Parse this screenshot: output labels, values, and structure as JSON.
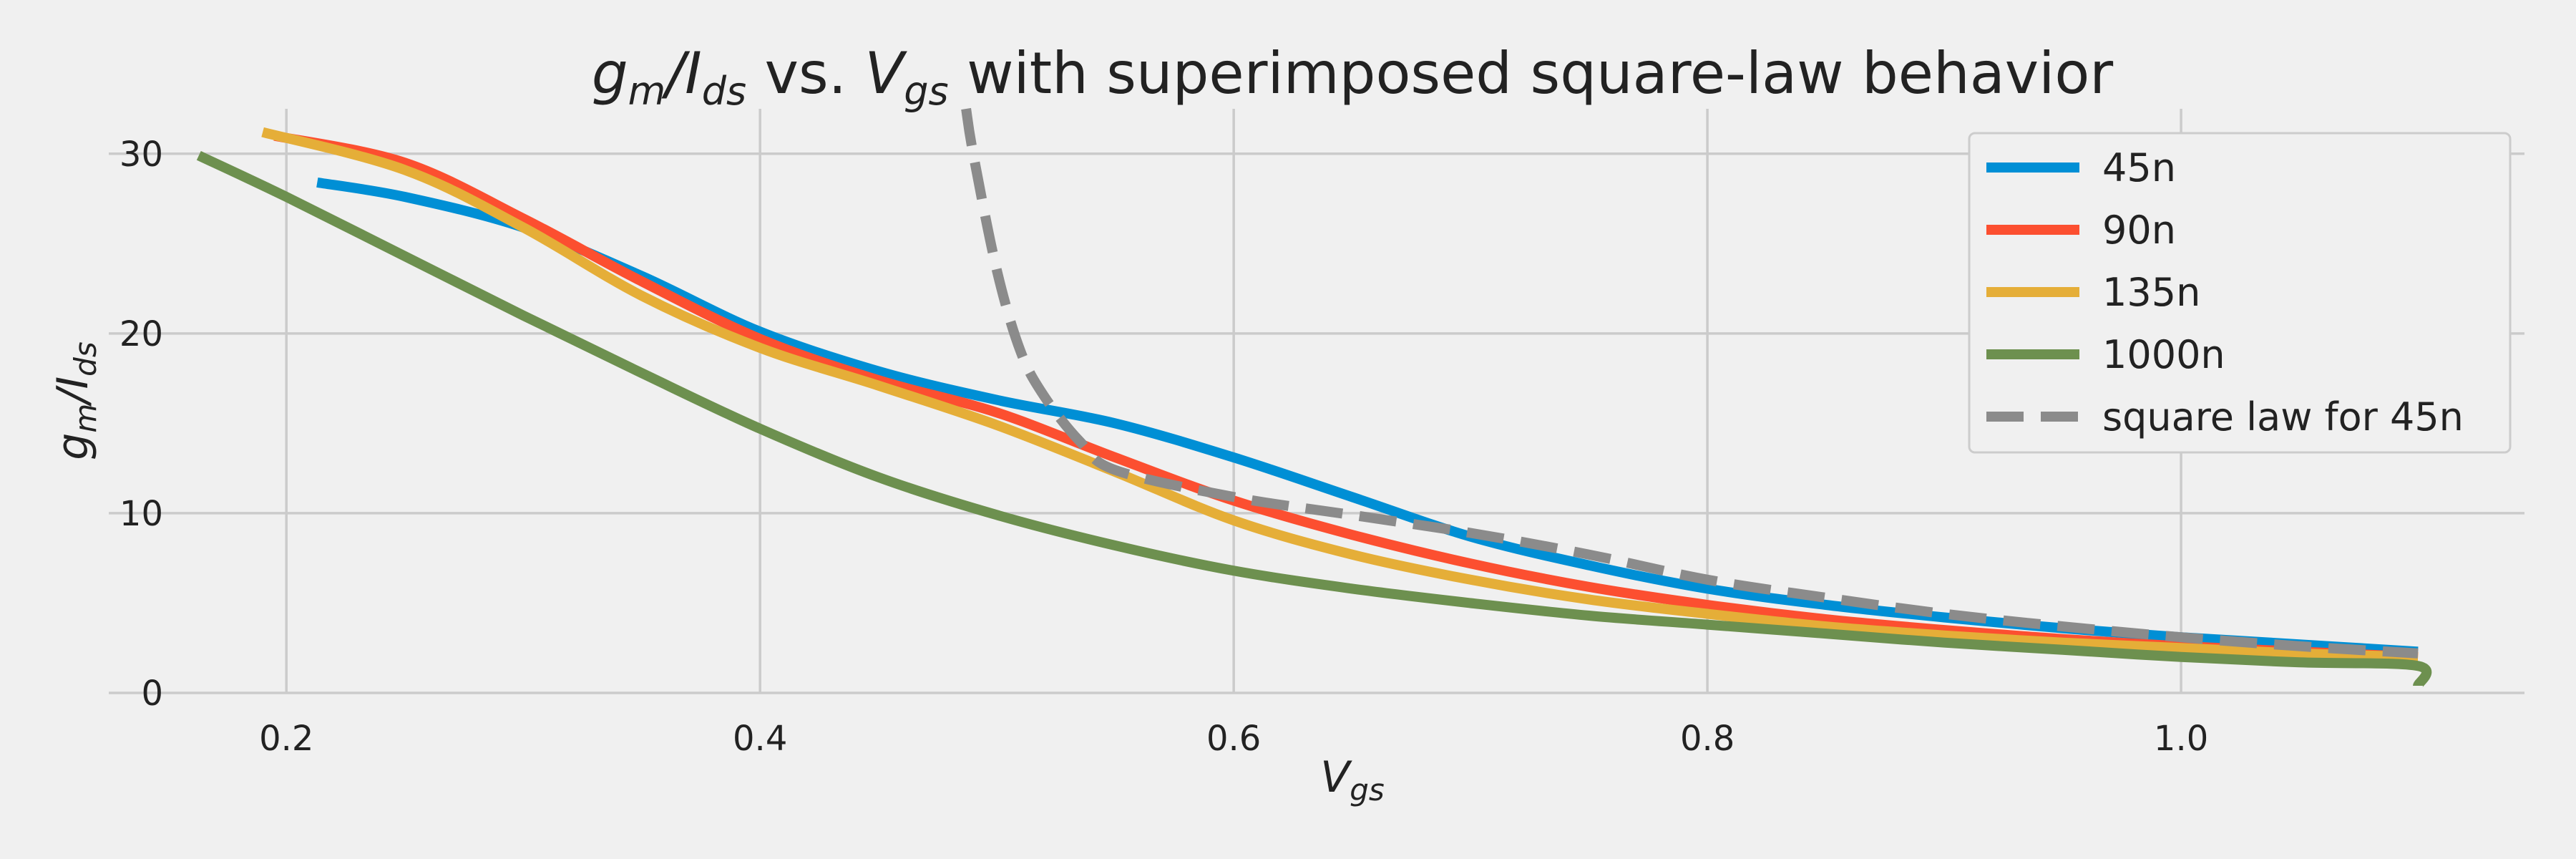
{
  "chart_data": {
    "type": "line",
    "title": "g_m/I_ds vs. V_gs with superimposed square-law behavior",
    "title_parts": {
      "gm": "g",
      "gm_sub": "m",
      "slash": "/",
      "ids": "I",
      "ids_sub": "ds",
      "vs": " vs. ",
      "vgs": "V",
      "vgs_sub": "gs",
      "rest": " with superimposed square-law behavior"
    },
    "xlabel": "V_gs",
    "xlabel_parts": {
      "main": "V",
      "sub": "gs"
    },
    "ylabel": "g_m/I_ds",
    "ylabel_parts": {
      "gm": "g",
      "gm_sub": "m",
      "slash": "/",
      "ids": "I",
      "ids_sub": "ds"
    },
    "xlim": [
      0.125,
      1.145
    ],
    "ylim": [
      0,
      32.5
    ],
    "xticks": [
      0.2,
      0.4,
      0.6,
      0.8,
      1.0
    ],
    "xtick_labels": [
      "0.2",
      "0.4",
      "0.6",
      "0.8",
      "1.0"
    ],
    "yticks": [
      0,
      10,
      20,
      30
    ],
    "ytick_labels": [
      "0",
      "10",
      "20",
      "30"
    ],
    "grid": true,
    "legend_position": "top-right",
    "series": [
      {
        "name": "45n",
        "color": "#008fd5",
        "dash": "solid",
        "x": [
          0.213,
          0.25,
          0.3,
          0.35,
          0.4,
          0.45,
          0.5,
          0.55,
          0.6,
          0.65,
          0.7,
          0.75,
          0.8,
          0.85,
          0.9,
          0.95,
          1.0,
          1.05,
          1.1
        ],
        "y": [
          28.4,
          27.6,
          25.9,
          23.2,
          20.1,
          17.9,
          16.3,
          15.0,
          13.1,
          10.9,
          8.7,
          7.1,
          5.8,
          4.9,
          4.2,
          3.6,
          3.1,
          2.7,
          2.3
        ]
      },
      {
        "name": "90n",
        "color": "#fc4f30",
        "dash": "solid",
        "x": [
          0.195,
          0.25,
          0.3,
          0.35,
          0.4,
          0.45,
          0.5,
          0.55,
          0.6,
          0.65,
          0.7,
          0.75,
          0.8,
          0.85,
          0.9,
          0.95,
          1.0,
          1.05,
          1.1
        ],
        "y": [
          31.0,
          29.5,
          26.4,
          22.9,
          19.7,
          17.4,
          15.6,
          13.1,
          10.7,
          8.8,
          7.2,
          5.9,
          4.9,
          4.1,
          3.5,
          3.0,
          2.6,
          2.3,
          2.0
        ]
      },
      {
        "name": "135n",
        "color": "#e5ae38",
        "dash": "solid",
        "x": [
          0.19,
          0.25,
          0.3,
          0.35,
          0.4,
          0.45,
          0.5,
          0.55,
          0.6,
          0.65,
          0.7,
          0.75,
          0.8,
          0.85,
          0.9,
          0.95,
          1.0,
          1.05,
          1.1
        ],
        "y": [
          31.2,
          29.1,
          25.9,
          22.1,
          19.2,
          17.1,
          14.9,
          12.3,
          9.6,
          7.7,
          6.3,
          5.2,
          4.4,
          3.7,
          3.2,
          2.8,
          2.5,
          2.2,
          2.0
        ]
      },
      {
        "name": "1000n",
        "color": "#6d904f",
        "dash": "solid",
        "x": [
          0.163,
          0.2,
          0.25,
          0.3,
          0.35,
          0.4,
          0.45,
          0.5,
          0.55,
          0.6,
          0.65,
          0.7,
          0.75,
          0.8,
          0.85,
          0.9,
          0.95,
          1.0,
          1.05,
          1.1,
          1.1
        ],
        "y": [
          29.9,
          27.6,
          24.3,
          21.0,
          17.8,
          14.7,
          12.0,
          9.9,
          8.2,
          6.8,
          5.8,
          5.0,
          4.3,
          3.8,
          3.3,
          2.8,
          2.4,
          2.0,
          1.7,
          1.5,
          0.4
        ]
      },
      {
        "name": "square law for 45n",
        "color": "#8b8b8b",
        "dash": "dashed",
        "x": [
          0.487,
          0.49,
          0.5,
          0.51,
          0.52,
          0.535,
          0.55,
          0.6,
          0.65,
          0.7,
          0.75,
          0.8,
          0.85,
          0.9,
          0.95,
          1.0,
          1.05,
          1.1
        ],
        "y": [
          32.5,
          30.0,
          23.5,
          19.0,
          16.5,
          14.0,
          12.4,
          10.9,
          9.9,
          8.9,
          7.7,
          6.3,
          5.3,
          4.4,
          3.7,
          3.1,
          2.6,
          2.2
        ]
      }
    ]
  }
}
